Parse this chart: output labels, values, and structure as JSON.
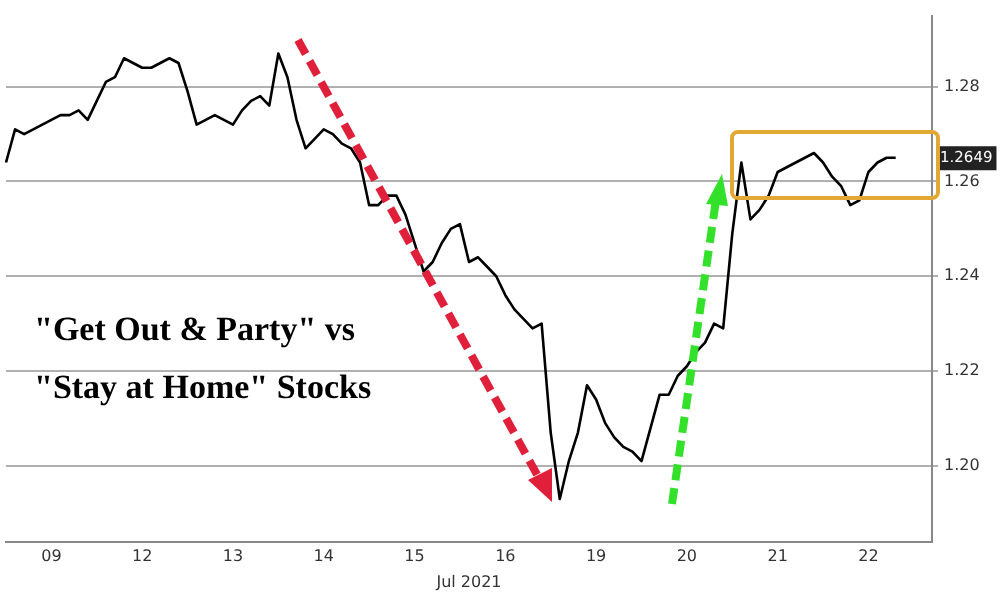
{
  "chart_data": {
    "type": "line",
    "xlabel": "Jul 2021",
    "annotations": [
      "\"Get Out & Party\" vs",
      "\"Stay at Home\" Stocks",
      {
        "text": "1.2649",
        "y": 1.2649
      }
    ],
    "categories": [
      null,
      null,
      null,
      null,
      null,
      "09",
      null,
      null,
      null,
      null,
      null,
      null,
      null,
      null,
      null,
      "12",
      null,
      null,
      null,
      null,
      null,
      null,
      null,
      null,
      null,
      "13",
      null,
      null,
      null,
      null,
      null,
      null,
      null,
      null,
      null,
      "14",
      null,
      null,
      null,
      null,
      null,
      null,
      null,
      null,
      null,
      "15",
      null,
      null,
      null,
      null,
      null,
      null,
      null,
      null,
      null,
      "16",
      null,
      null,
      null,
      null,
      null,
      null,
      null,
      null,
      null,
      "19",
      null,
      null,
      null,
      null,
      null,
      null,
      null,
      null,
      null,
      "20",
      null,
      null,
      null,
      null,
      null,
      null,
      null,
      null,
      null,
      "21",
      null,
      null,
      null,
      null,
      null,
      null,
      null,
      null,
      null,
      "22",
      null,
      null,
      null,
      null,
      null,
      null,
      null
    ],
    "series": [
      {
        "color": "#000000",
        "values": [
          1.264,
          1.271,
          1.27,
          1.271,
          1.272,
          1.273,
          1.274,
          1.274,
          1.275,
          1.273,
          1.277,
          1.281,
          1.282,
          1.286,
          1.285,
          1.284,
          1.284,
          1.285,
          1.286,
          1.285,
          1.279,
          1.272,
          1.273,
          1.274,
          1.273,
          1.272,
          1.275,
          1.277,
          1.278,
          1.276,
          1.287,
          1.282,
          1.273,
          1.267,
          1.269,
          1.271,
          1.27,
          1.268,
          1.267,
          1.264,
          1.255,
          1.255,
          1.257,
          1.257,
          1.253,
          1.247,
          1.241,
          1.243,
          1.247,
          1.25,
          1.251,
          1.243,
          1.244,
          1.242,
          1.24,
          1.236,
          1.233,
          1.231,
          1.229,
          1.23,
          1.207,
          1.193,
          1.201,
          1.207,
          1.217,
          1.214,
          1.209,
          1.206,
          1.204,
          1.203,
          1.201,
          1.208,
          1.215,
          1.215,
          1.219,
          1.221,
          1.224,
          1.226,
          1.23,
          1.229,
          1.249,
          1.264,
          1.252,
          1.254,
          1.257,
          1.262,
          1.263,
          1.264,
          1.265,
          1.266,
          1.264,
          1.261,
          1.259,
          1.255,
          1.256,
          1.262,
          1.264,
          1.265,
          1.265,
          null,
          null,
          null,
          null
        ]
      }
    ],
    "ylim": [
      1.184,
      1.295
    ],
    "yticks": [
      {
        "value": 1.2,
        "label": "1.20"
      },
      {
        "value": 1.22,
        "label": "1.22"
      },
      {
        "value": 1.24,
        "label": "1.24"
      },
      {
        "value": 1.26,
        "label": "1.26"
      },
      {
        "value": 1.28,
        "label": "1.28"
      }
    ],
    "grid": "y",
    "legend": false,
    "marker": "none"
  }
}
